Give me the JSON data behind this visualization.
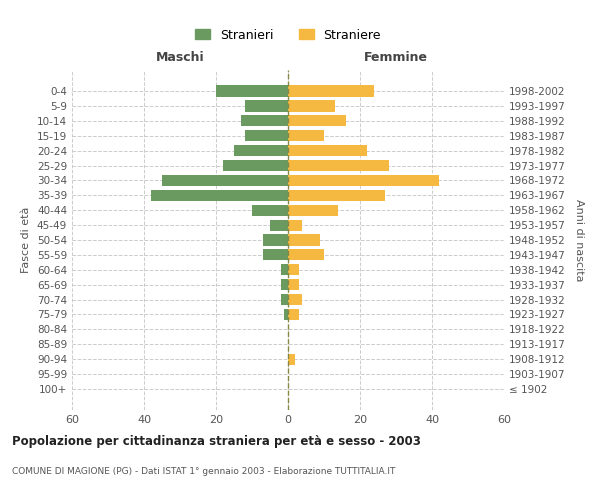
{
  "age_groups": [
    "100+",
    "95-99",
    "90-94",
    "85-89",
    "80-84",
    "75-79",
    "70-74",
    "65-69",
    "60-64",
    "55-59",
    "50-54",
    "45-49",
    "40-44",
    "35-39",
    "30-34",
    "25-29",
    "20-24",
    "15-19",
    "10-14",
    "5-9",
    "0-4"
  ],
  "birth_years": [
    "≤ 1902",
    "1903-1907",
    "1908-1912",
    "1913-1917",
    "1918-1922",
    "1923-1927",
    "1928-1932",
    "1933-1937",
    "1938-1942",
    "1943-1947",
    "1948-1952",
    "1953-1957",
    "1958-1962",
    "1963-1967",
    "1968-1972",
    "1973-1977",
    "1978-1982",
    "1983-1987",
    "1988-1992",
    "1993-1997",
    "1998-2002"
  ],
  "maschi": [
    0,
    0,
    0,
    0,
    0,
    1,
    2,
    2,
    2,
    7,
    7,
    5,
    10,
    38,
    35,
    18,
    15,
    12,
    13,
    12,
    20
  ],
  "femmine": [
    0,
    0,
    2,
    0,
    0,
    3,
    4,
    3,
    3,
    10,
    9,
    4,
    14,
    27,
    42,
    28,
    22,
    10,
    16,
    13,
    24
  ],
  "color_maschi": "#6a9a5f",
  "color_femmine": "#f5b942",
  "title": "Popolazione per cittadinanza straniera per età e sesso - 2003",
  "subtitle": "COMUNE DI MAGIONE (PG) - Dati ISTAT 1° gennaio 2003 - Elaborazione TUTTITALIA.IT",
  "ylabel_left": "Fasce di età",
  "ylabel_right": "Anni di nascita",
  "xlabel_maschi": "Maschi",
  "xlabel_femmine": "Femmine",
  "legend_maschi": "Stranieri",
  "legend_femmine": "Straniere",
  "xlim": 60,
  "background_color": "#ffffff",
  "grid_color": "#cccccc"
}
